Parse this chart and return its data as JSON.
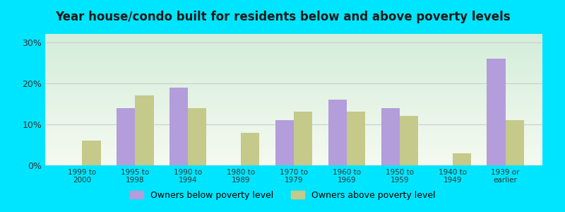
{
  "title": "Year house/condo built for residents below and above poverty levels",
  "categories": [
    "1999 to\n2000",
    "1995 to\n1998",
    "1990 to\n1994",
    "1980 to\n1989",
    "1970 to\n1979",
    "1960 to\n1969",
    "1950 to\n1959",
    "1940 to\n1949",
    "1939 or\nearlier"
  ],
  "below_poverty": [
    0,
    14,
    19,
    0,
    11,
    16,
    14,
    0,
    26
  ],
  "above_poverty": [
    6,
    17,
    14,
    8,
    13,
    13,
    12,
    3,
    11
  ],
  "below_color": "#b39ddb",
  "above_color": "#c5c98a",
  "background_color_outer": "#00e5ff",
  "bg_top": "#d4edda",
  "bg_bottom": "#f5faf0",
  "grid_color": "#cccccc",
  "title_fontsize": 12,
  "legend_below": "Owners below poverty level",
  "legend_above": "Owners above poverty level",
  "ylim": [
    0,
    32
  ],
  "yticks": [
    0,
    10,
    20,
    30
  ],
  "bar_width": 0.35,
  "title_color": "#1a1a1a"
}
